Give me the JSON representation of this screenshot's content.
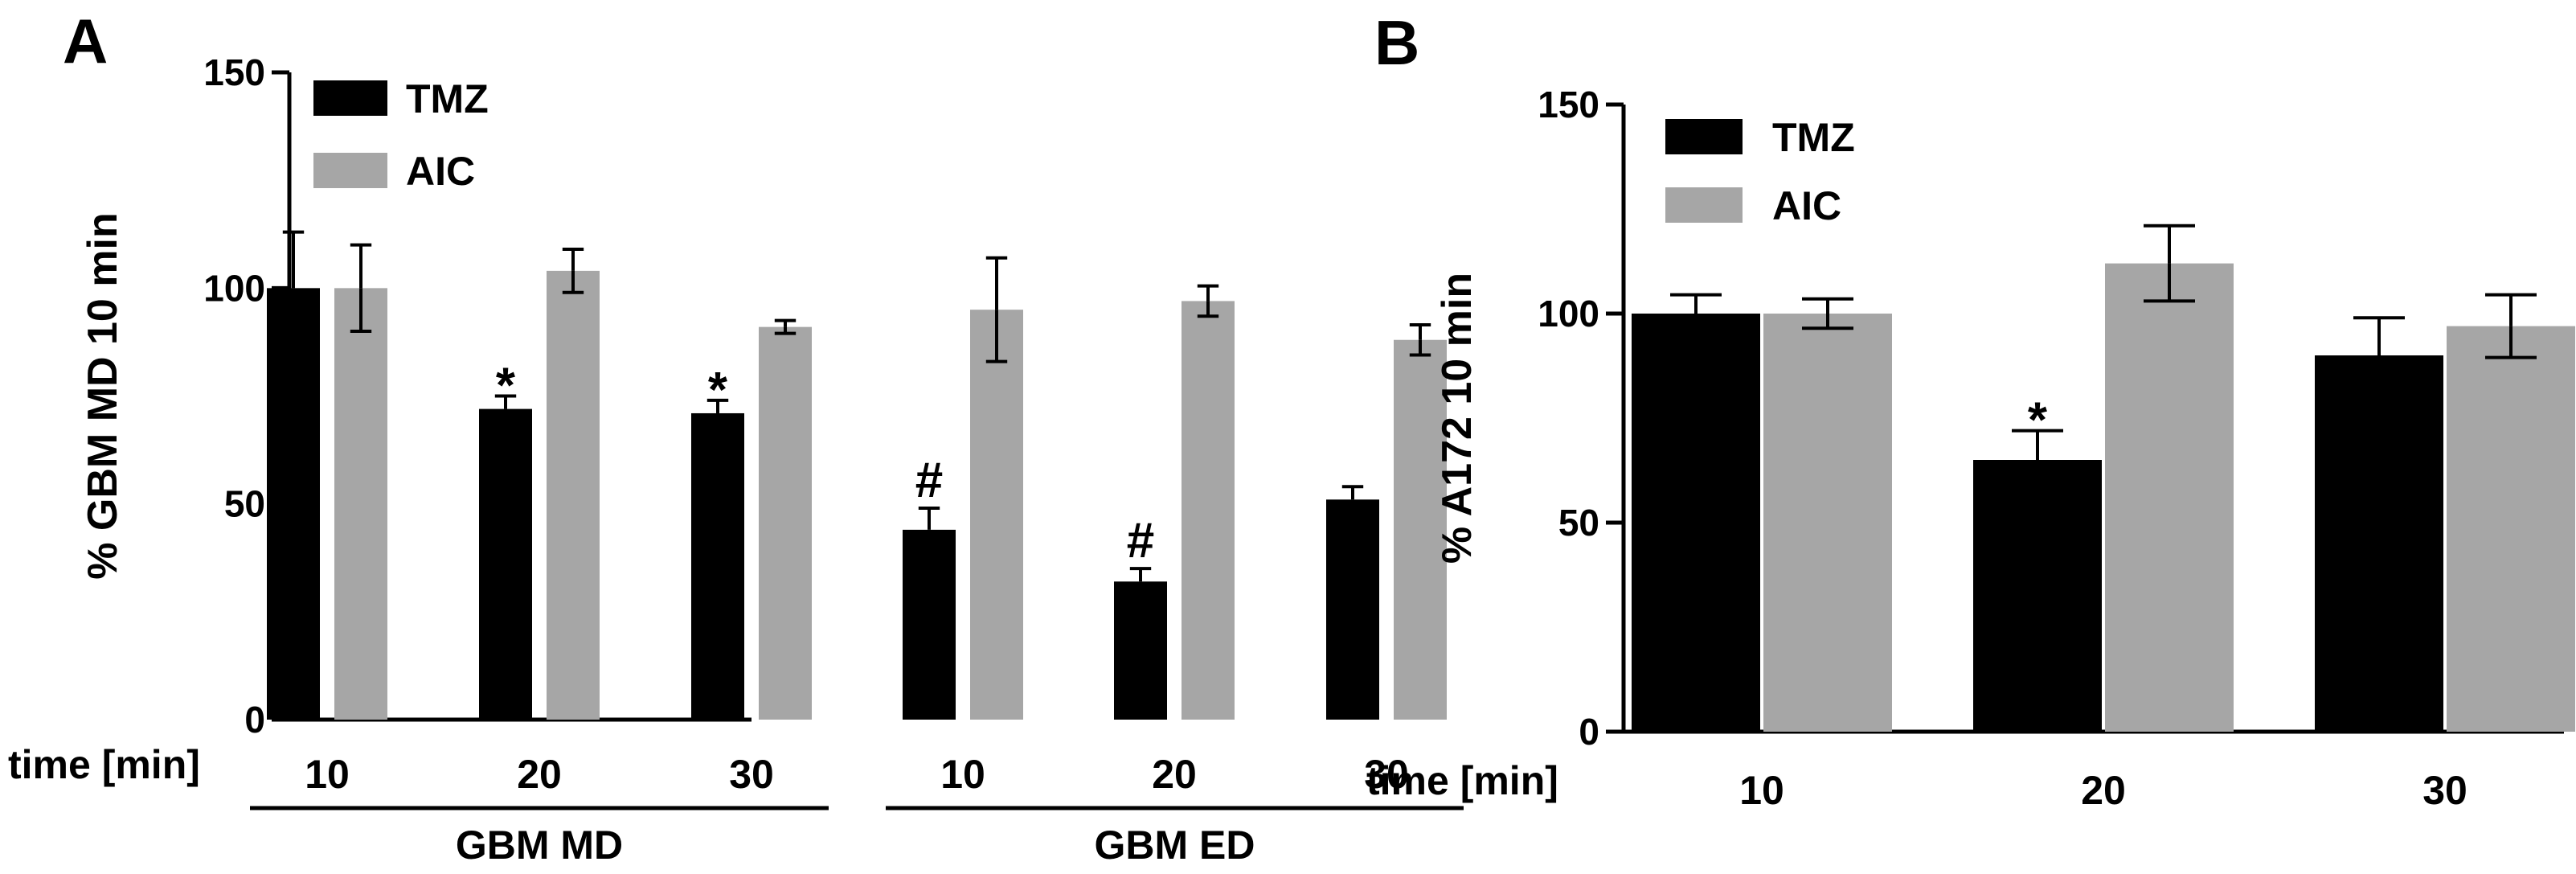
{
  "colors": {
    "tmz": "#000000",
    "aic": "#a6a6a6",
    "axis": "#000000"
  },
  "chart_data": [
    {
      "panel": "A",
      "type": "bar",
      "ylabel": "% GBM MD 10 min",
      "xlabel": "time [min]",
      "ylim": [
        0,
        150
      ],
      "yticks": [
        "0",
        "50",
        "100",
        "150"
      ],
      "categories": [
        "10",
        "20",
        "30",
        "10",
        "20",
        "30"
      ],
      "groups": [
        {
          "label": "GBM MD",
          "categories": [
            0,
            1,
            2
          ]
        },
        {
          "label": "GBM ED",
          "categories": [
            3,
            4,
            5
          ]
        }
      ],
      "legend": [
        "TMZ",
        "AIC"
      ],
      "legend_position": "top-left",
      "series": [
        {
          "name": "TMZ",
          "color": "#000000",
          "values": [
            100,
            72,
            71,
            44,
            32,
            51
          ],
          "errors": [
            13,
            3,
            3,
            5,
            3,
            3
          ]
        },
        {
          "name": "AIC",
          "color": "#a6a6a6",
          "values": [
            100,
            104,
            91,
            95,
            97,
            88
          ],
          "errors": [
            10,
            5,
            1.5,
            12,
            3.5,
            3.5
          ]
        }
      ],
      "annotations": [
        {
          "series": 0,
          "category": 1,
          "text": "*"
        },
        {
          "series": 0,
          "category": 2,
          "text": "*"
        },
        {
          "series": 0,
          "category": 3,
          "text": "#"
        },
        {
          "series": 0,
          "category": 4,
          "text": "#"
        }
      ]
    },
    {
      "panel": "B",
      "type": "bar",
      "ylabel": "% A172 10 min",
      "xlabel": "time [min]",
      "ylim": [
        0,
        150
      ],
      "yticks": [
        "0",
        "50",
        "100",
        "150"
      ],
      "categories": [
        "10",
        "20",
        "30"
      ],
      "groups": [],
      "legend": [
        "TMZ",
        "AIC"
      ],
      "legend_position": "top-left",
      "series": [
        {
          "name": "TMZ",
          "color": "#000000",
          "values": [
            100,
            65,
            90
          ],
          "errors": [
            4.5,
            7,
            9
          ]
        },
        {
          "name": "AIC",
          "color": "#a6a6a6",
          "values": [
            100,
            112,
            97
          ],
          "errors": [
            3.5,
            9,
            7.5
          ]
        }
      ],
      "annotations": [
        {
          "series": 0,
          "category": 1,
          "text": "*"
        }
      ]
    }
  ]
}
